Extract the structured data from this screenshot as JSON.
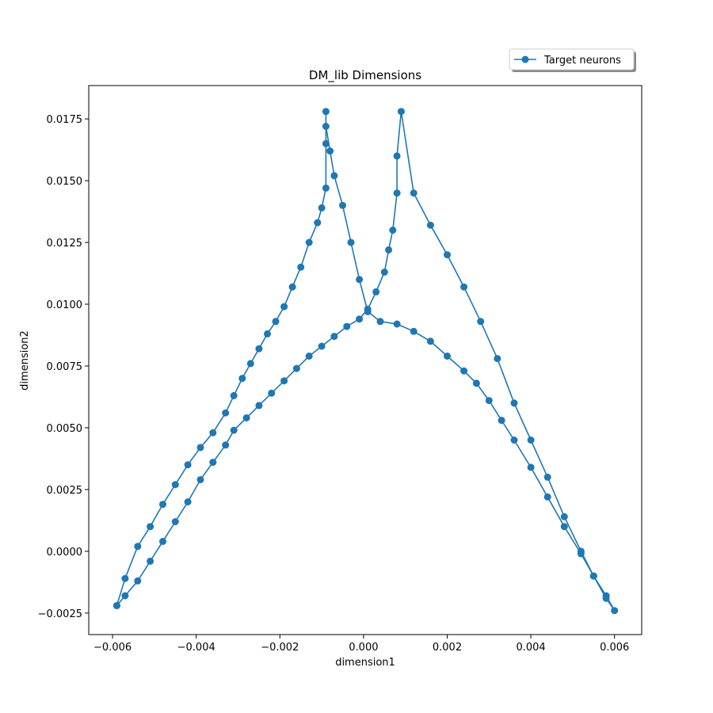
{
  "chart_data": {
    "type": "line",
    "title": "DM_lib Dimensions",
    "xlabel": "dimension1",
    "ylabel": "dimension2",
    "xlim": [
      -0.00657,
      0.00665
    ],
    "ylim": [
      -0.00337,
      0.01885
    ],
    "x_ticks": [
      -0.006,
      -0.004,
      -0.002,
      0.0,
      0.002,
      0.004,
      0.006
    ],
    "x_tick_labels": [
      "−0.006",
      "−0.004",
      "−0.002",
      "0.000",
      "0.002",
      "0.004",
      "0.006"
    ],
    "y_ticks": [
      -0.0025,
      0.0,
      0.0025,
      0.005,
      0.0075,
      0.01,
      0.0125,
      0.015,
      0.0175
    ],
    "y_tick_labels": [
      "−0.0025",
      "0.0000",
      "0.0025",
      "0.0050",
      "0.0075",
      "0.0100",
      "0.0125",
      "0.0150",
      "0.0175"
    ],
    "grid": false,
    "legend_position": "upper-right, above plot",
    "series": [
      {
        "name": "Target neurons",
        "color": "#1f77b4",
        "marker": "circle",
        "x": [
          -0.0059,
          -0.0057,
          -0.0054,
          -0.0051,
          -0.0048,
          -0.0045,
          -0.0042,
          -0.0039,
          -0.0036,
          -0.0033,
          -0.0031,
          -0.0028,
          -0.0025,
          -0.0022,
          -0.0019,
          -0.0016,
          -0.0013,
          -0.001,
          -0.0007,
          -0.0004,
          -0.0001,
          0.0001,
          0.0003,
          0.0005,
          0.0006,
          0.0007,
          0.0008,
          0.0008,
          0.0009,
          0.0012,
          0.0016,
          0.002,
          0.0024,
          0.0028,
          0.0032,
          0.0036,
          0.004,
          0.0044,
          0.0048,
          0.0052,
          0.0055,
          0.0058,
          0.006,
          0.0058,
          0.0055,
          0.0052,
          0.0048,
          0.0044,
          0.004,
          0.0036,
          0.0033,
          0.003,
          0.0027,
          0.0024,
          0.002,
          0.0016,
          0.0012,
          0.0008,
          0.0004,
          0.0001,
          -0.0001,
          -0.0003,
          -0.0005,
          -0.0007,
          -0.0008,
          -0.0009,
          -0.0009,
          -0.0009,
          -0.0009,
          -0.001,
          -0.0011,
          -0.0013,
          -0.0015,
          -0.0017,
          -0.0019,
          -0.0021,
          -0.0023,
          -0.0025,
          -0.0027,
          -0.0029,
          -0.0031,
          -0.0033,
          -0.0036,
          -0.0039,
          -0.0042,
          -0.0045,
          -0.0048,
          -0.0051,
          -0.0054,
          -0.0057,
          -0.0059
        ],
        "y": [
          -0.0022,
          -0.0018,
          -0.0012,
          -0.0004,
          0.0004,
          0.0012,
          0.002,
          0.0029,
          0.0036,
          0.0043,
          0.0049,
          0.0054,
          0.0059,
          0.0064,
          0.0069,
          0.0074,
          0.0079,
          0.0083,
          0.0087,
          0.0091,
          0.0094,
          0.0098,
          0.0105,
          0.0113,
          0.0122,
          0.013,
          0.0145,
          0.016,
          0.0178,
          0.0145,
          0.0132,
          0.012,
          0.0107,
          0.0093,
          0.0078,
          0.006,
          0.0045,
          0.003,
          0.0014,
          0.0,
          -0.001,
          -0.0019,
          -0.0024,
          -0.0018,
          -0.001,
          -0.0001,
          0.001,
          0.0022,
          0.0034,
          0.0045,
          0.0053,
          0.0061,
          0.0068,
          0.0073,
          0.0079,
          0.0085,
          0.0089,
          0.0092,
          0.0093,
          0.0097,
          0.011,
          0.0125,
          0.014,
          0.0152,
          0.0162,
          0.0172,
          0.0178,
          0.0165,
          0.0147,
          0.0139,
          0.0133,
          0.0125,
          0.0115,
          0.0107,
          0.0099,
          0.0093,
          0.0088,
          0.0082,
          0.0076,
          0.007,
          0.0063,
          0.0056,
          0.0048,
          0.0042,
          0.0035,
          0.0027,
          0.0019,
          0.001,
          0.0002,
          -0.0011,
          -0.0022
        ]
      }
    ]
  }
}
